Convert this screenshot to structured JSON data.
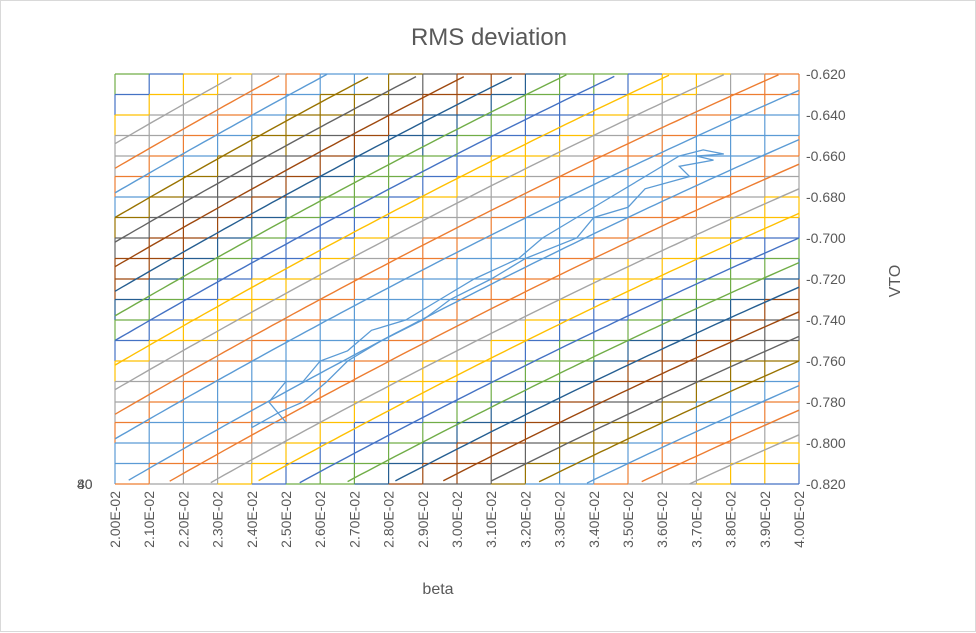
{
  "chart_data": {
    "type": "contour",
    "title": "RMS deviation",
    "xlabel": "beta",
    "ylabel": "VTO",
    "x_ticks": [
      "2.00E-02",
      "2.10E-02",
      "2.20E-02",
      "2.30E-02",
      "2.40E-02",
      "2.50E-02",
      "2.60E-02",
      "2.70E-02",
      "2.80E-02",
      "2.90E-02",
      "3.00E-02",
      "3.10E-02",
      "3.20E-02",
      "3.30E-02",
      "3.40E-02",
      "3.50E-02",
      "3.60E-02",
      "3.70E-02",
      "3.80E-02",
      "3.90E-02",
      "4.00E-02"
    ],
    "y_ticks": [
      "-0.620",
      "-0.640",
      "-0.660",
      "-0.680",
      "-0.700",
      "-0.720",
      "-0.740",
      "-0.760",
      "-0.780",
      "-0.800",
      "-0.820"
    ],
    "xlim": [
      0.02,
      0.04
    ],
    "ylim": [
      -0.82,
      -0.62
    ],
    "grid": {
      "x_step": 0.001,
      "y_step": 0.01
    },
    "band_colors": [
      "#5b9bd5",
      "#ed7d31",
      "#a5a5a5",
      "#ffc000",
      "#4472c4",
      "#70ad47",
      "#255e91",
      "#9e480e",
      "#636363",
      "#997300"
    ],
    "minimum_outline": [
      [
        0.024,
        -0.7925
      ],
      [
        0.024,
        -0.79
      ],
      [
        0.025,
        -0.79
      ],
      [
        0.0245,
        -0.78
      ],
      [
        0.025,
        -0.77
      ],
      [
        0.0255,
        -0.77
      ],
      [
        0.026,
        -0.76
      ],
      [
        0.0268,
        -0.755
      ],
      [
        0.0275,
        -0.745
      ],
      [
        0.0285,
        -0.74
      ],
      [
        0.0295,
        -0.73
      ],
      [
        0.0305,
        -0.72
      ],
      [
        0.0318,
        -0.71
      ],
      [
        0.0325,
        -0.7
      ],
      [
        0.0335,
        -0.69
      ],
      [
        0.0345,
        -0.68
      ],
      [
        0.0355,
        -0.67
      ],
      [
        0.0365,
        -0.66
      ],
      [
        0.0372,
        -0.657
      ],
      [
        0.0378,
        -0.659
      ],
      [
        0.037,
        -0.66
      ],
      [
        0.0375,
        -0.662
      ],
      [
        0.0365,
        -0.665
      ],
      [
        0.0368,
        -0.67
      ],
      [
        0.0355,
        -0.676
      ],
      [
        0.035,
        -0.685
      ],
      [
        0.034,
        -0.69
      ],
      [
        0.0335,
        -0.7
      ],
      [
        0.032,
        -0.71
      ],
      [
        0.031,
        -0.72
      ],
      [
        0.0298,
        -0.73
      ],
      [
        0.029,
        -0.74
      ],
      [
        0.0278,
        -0.75
      ],
      [
        0.0268,
        -0.76
      ],
      [
        0.0262,
        -0.77
      ],
      [
        0.0255,
        -0.78
      ],
      [
        0.0248,
        -0.785
      ],
      [
        0.024,
        -0.7925
      ]
    ],
    "stray_labels": [
      "40",
      "80"
    ]
  }
}
